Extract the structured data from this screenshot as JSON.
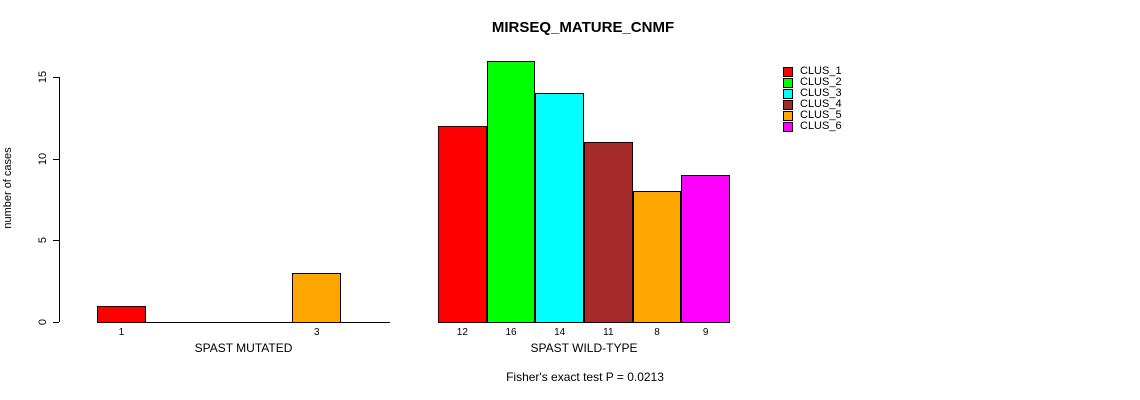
{
  "chart_data": {
    "type": "bar",
    "title": "MIRSEQ_MATURE_CNMF",
    "ylabel": "number of cases",
    "ylim": [
      0,
      15
    ],
    "yticks": [
      0,
      5,
      10,
      15
    ],
    "grid": false,
    "legend_position": "right",
    "caption": "Fisher's exact test P = 0.0213",
    "clusters": [
      {
        "name": "CLUS_1",
        "color": "#FF0000"
      },
      {
        "name": "CLUS_2",
        "color": "#00FF00"
      },
      {
        "name": "CLUS_3",
        "color": "#00FFFF"
      },
      {
        "name": "CLUS_4",
        "color": "#A52A2A"
      },
      {
        "name": "CLUS_5",
        "color": "#FFA500"
      },
      {
        "name": "CLUS_6",
        "color": "#FF00FF"
      }
    ],
    "groups": [
      {
        "label": "SPAST MUTATED",
        "values": [
          1,
          0,
          0,
          0,
          3,
          0
        ],
        "bar_labels": [
          "1",
          "",
          "",
          "",
          "3",
          ""
        ]
      },
      {
        "label": "SPAST WILD-TYPE",
        "values": [
          12,
          16,
          14,
          11,
          8,
          9
        ],
        "bar_labels": [
          "12",
          "16",
          "14",
          "11",
          "8",
          "9"
        ]
      }
    ]
  }
}
